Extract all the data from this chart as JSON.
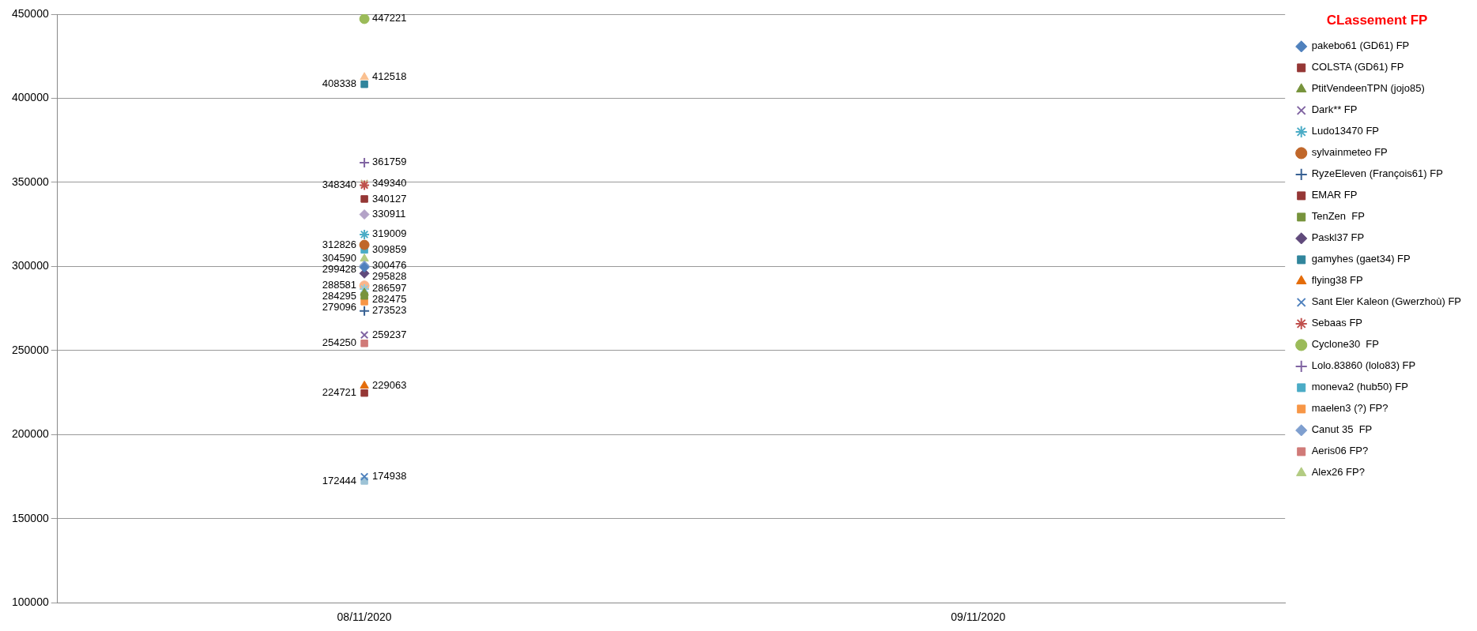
{
  "chart_data": {
    "type": "line",
    "legend_title": "CLassement FP",
    "categories": [
      "08/11/2020",
      "09/11/2020"
    ],
    "ylim": [
      100000,
      450000
    ],
    "yticks": [
      100000,
      150000,
      200000,
      250000,
      300000,
      350000,
      400000,
      450000
    ],
    "grid": "y",
    "legend": "right",
    "data_labels": true,
    "series": [
      {
        "name": "pakebo61 (GD61) FP",
        "color": "#4f81bd",
        "marker": "diamond",
        "values": [
          299428,
          null
        ]
      },
      {
        "name": "COLSTA (GD61) FP",
        "color": "#953735",
        "marker": "square",
        "values": [
          340127,
          null
        ]
      },
      {
        "name": "PtitVendeenTPN (jojo85)",
        "color": "#77933c",
        "marker": "triangle",
        "values": [
          284295,
          null
        ]
      },
      {
        "name": "Dark** FP",
        "color": "#8064a2",
        "marker": "x",
        "values": [
          259237,
          null
        ]
      },
      {
        "name": "Ludo13470 FP",
        "color": "#4bacc6",
        "marker": "cross",
        "values": [
          319009,
          null
        ]
      },
      {
        "name": "sylvainmeteo FP",
        "color": "#c0672a",
        "marker": "circle",
        "values": [
          312826,
          null
        ]
      },
      {
        "name": "RyzeEleven (François61) FP",
        "color": "#376092",
        "marker": "plus",
        "values": [
          273523,
          null
        ]
      },
      {
        "name": "EMAR FP",
        "color": "#953735",
        "marker": "square",
        "values": [
          224721,
          null
        ]
      },
      {
        "name": "TenZen  FP",
        "color": "#77933c",
        "marker": "square",
        "values": [
          282475,
          null
        ]
      },
      {
        "name": "Paskl37 FP",
        "color": "#604a7b",
        "marker": "diamond",
        "values": [
          295828,
          null
        ]
      },
      {
        "name": "gamyhes (gaet34) FP",
        "color": "#31859c",
        "marker": "square",
        "values": [
          408338,
          null
        ]
      },
      {
        "name": "flying38 FP",
        "color": "#e46c0a",
        "marker": "triangle",
        "values": [
          229063,
          null
        ]
      },
      {
        "name": "Sant Eler Kaleon (Gwerzhoù) FP",
        "color": "#4f81bd",
        "marker": "x",
        "values": [
          174938,
          null
        ]
      },
      {
        "name": "Sebaas FP",
        "color": "#c0504d",
        "marker": "cross",
        "values": [
          348340,
          null
        ]
      },
      {
        "name": "Cyclone30  FP",
        "color": "#9bbb59",
        "marker": "circle",
        "values": [
          447221,
          null
        ]
      },
      {
        "name": "Lolo.83860 (lolo83) FP",
        "color": "#8064a2",
        "marker": "plus",
        "values": [
          361759,
          null
        ]
      },
      {
        "name": "moneva2 (hub50) FP",
        "color": "#4bacc6",
        "marker": "square",
        "values": [
          309859,
          null
        ]
      },
      {
        "name": "maelen3 (?) FP?",
        "color": "#f79646",
        "marker": "square",
        "values": [
          279096,
          null
        ]
      },
      {
        "name": "Canut 35  FP",
        "color": "#7f9fcf",
        "marker": "diamond",
        "values": [
          300476,
          null
        ]
      },
      {
        "name": "Aeris06 FP?",
        "color": "#d07a78",
        "marker": "square",
        "values": [
          254250,
          null
        ]
      },
      {
        "name": "Alex26 FP?",
        "color": "#b3cc82",
        "marker": "triangle",
        "values": [
          304590,
          null
        ]
      },
      {
        "color": "#c4b48a",
        "marker": "x",
        "values": [
          349340,
          null
        ]
      },
      {
        "color": "#93cddd",
        "marker": "cross",
        "values": [
          286597,
          null
        ]
      },
      {
        "color": "#fab58a",
        "marker": "circle",
        "values": [
          288581,
          null
        ]
      },
      {
        "color": "#b3a2c7",
        "marker": "diamond",
        "values": [
          330911,
          null
        ]
      },
      {
        "color": "#9dc3d6",
        "marker": "square",
        "values": [
          172444,
          null
        ]
      },
      {
        "color": "#fac090",
        "marker": "triangle",
        "values": [
          412518,
          null
        ]
      }
    ]
  }
}
